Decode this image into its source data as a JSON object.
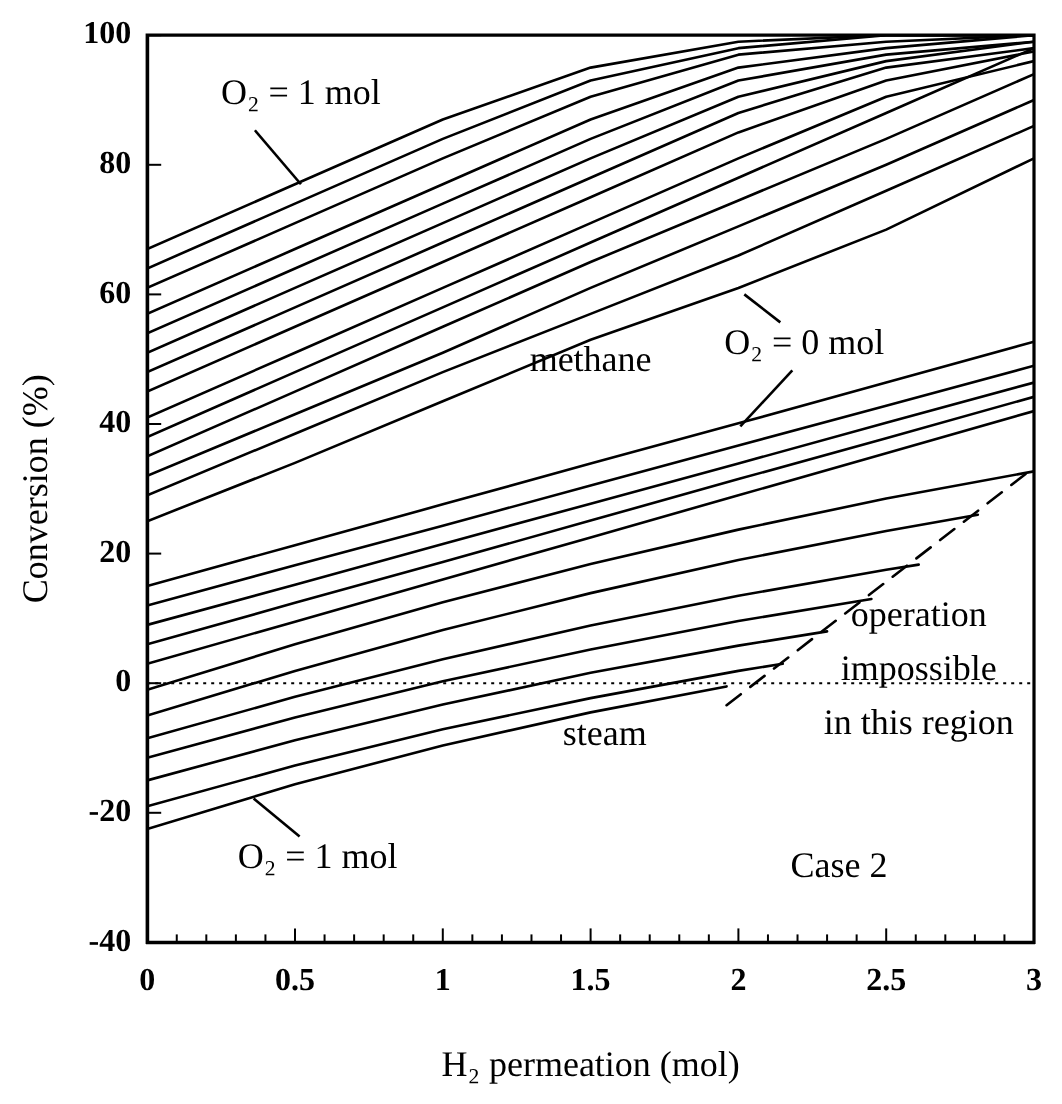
{
  "chart_data": {
    "type": "line",
    "xlabel": "H₂ permeation (mol)",
    "ylabel": "Conversion (%)",
    "x": [
      0,
      0.5,
      1,
      1.5,
      2,
      2.5,
      3
    ],
    "xlim": [
      0,
      3
    ],
    "ylim": [
      -40,
      100
    ],
    "xticks": [
      0,
      {
        "value": 0.1,
        "label": null
      },
      {
        "value": 0.2,
        "label": null
      },
      {
        "value": 0.3,
        "label": null
      },
      {
        "value": 0.4,
        "label": null
      },
      0.5,
      {
        "value": 0.6,
        "label": null
      },
      {
        "value": 0.7,
        "label": null
      },
      {
        "value": 0.8,
        "label": null
      },
      {
        "value": 0.9,
        "label": null
      },
      1,
      {
        "value": 1.1,
        "label": null
      },
      {
        "value": 1.2,
        "label": null
      },
      {
        "value": 1.3,
        "label": null
      },
      {
        "value": 1.4,
        "label": null
      },
      1.5,
      {
        "value": 1.6,
        "label": null
      },
      {
        "value": 1.7,
        "label": null
      },
      {
        "value": 1.8,
        "label": null
      },
      {
        "value": 1.9,
        "label": null
      },
      2,
      {
        "value": 2.1,
        "label": null
      },
      {
        "value": 2.2,
        "label": null
      },
      {
        "value": 2.3,
        "label": null
      },
      {
        "value": 2.4,
        "label": null
      },
      2.5,
      {
        "value": 2.6,
        "label": null
      },
      {
        "value": 2.7,
        "label": null
      },
      {
        "value": 2.8,
        "label": null
      },
      {
        "value": 2.9,
        "label": null
      },
      3
    ],
    "yticks": [
      -40,
      -20,
      0,
      20,
      40,
      60,
      80,
      100
    ],
    "series": [
      {
        "color": "#000000",
        "values": [
          67,
          77,
          87,
          95,
          99,
          100,
          100
        ]
      },
      {
        "color": "#000000",
        "values": [
          64,
          74,
          84,
          93,
          98,
          100,
          100
        ]
      },
      {
        "color": "#000000",
        "values": [
          61,
          71,
          81,
          90.5,
          97,
          99,
          100
        ]
      },
      {
        "color": "#000000",
        "values": [
          57,
          67,
          77,
          87,
          95,
          98,
          100
        ]
      },
      {
        "color": "#000000",
        "values": [
          54,
          64,
          74,
          84,
          93,
          97,
          99
        ]
      },
      {
        "color": "#000000",
        "values": [
          51,
          61,
          71,
          81,
          90.5,
          96,
          99
        ]
      },
      {
        "color": "#000000",
        "values": [
          48,
          58,
          68,
          78,
          88,
          95,
          98
        ]
      },
      {
        "color": "#000000",
        "values": [
          45,
          55,
          65,
          75,
          85,
          93,
          97.5
        ]
      },
      {
        "color": "#000000",
        "values": [
          41,
          51,
          61,
          71,
          81,
          90.5,
          96
        ]
      },
      {
        "color": "#000000",
        "values": [
          38,
          48,
          58,
          68,
          78,
          88,
          98
        ]
      },
      {
        "color": "#000000",
        "values": [
          35,
          45,
          55,
          65,
          74.5,
          84,
          94
        ]
      },
      {
        "color": "#000000",
        "values": [
          32,
          41.5,
          51,
          61,
          70.5,
          80,
          90
        ]
      },
      {
        "color": "#000000",
        "values": [
          29,
          38.5,
          48,
          57,
          66,
          76,
          86
        ]
      },
      {
        "color": "#000000",
        "values": [
          25,
          34,
          43.5,
          53,
          61,
          70,
          81
        ]
      },
      {
        "color": "#000000",
        "values": [
          15,
          21.3,
          27.6,
          33.9,
          40.1,
          46.4,
          52.7
        ]
      },
      {
        "color": "#000000",
        "values": [
          12,
          18.2,
          24.3,
          30.5,
          36.7,
          42.8,
          49
        ]
      },
      {
        "color": "#000000",
        "values": [
          9,
          15.2,
          21.5,
          27.7,
          33.9,
          40.2,
          46.4
        ]
      },
      {
        "color": "#000000",
        "values": [
          6,
          12.4,
          18.7,
          25.1,
          31.5,
          37.8,
          44.2
        ]
      },
      {
        "color": "#000000",
        "values": [
          3,
          9.5,
          16,
          22.5,
          29,
          35.5,
          42
        ]
      },
      {
        "color": "#000000",
        "values": [
          -1,
          6,
          12.5,
          18.4,
          23.7,
          28.5,
          32.7
        ]
      },
      {
        "color": "#000000",
        "x": [
          0,
          0.5,
          1,
          1.5,
          2,
          2.5,
          2.81
        ],
        "values": [
          -5,
          1.9,
          8.2,
          13.9,
          19,
          23.5,
          26
        ]
      },
      {
        "color": "#000000",
        "x": [
          0,
          0.5,
          1,
          1.5,
          2,
          2.5,
          2.61
        ],
        "values": [
          -8.5,
          -2.1,
          3.7,
          8.9,
          13.5,
          17.5,
          18.3
        ]
      },
      {
        "color": "#000000",
        "x": [
          0,
          0.5,
          1,
          1.5,
          2,
          2.45
        ],
        "values": [
          -11.5,
          -5.3,
          0.3,
          5.2,
          9.6,
          13
        ]
      },
      {
        "color": "#000000",
        "x": [
          0,
          0.5,
          1,
          1.5,
          2,
          2.3
        ],
        "values": [
          -15,
          -8.8,
          -3.3,
          1.6,
          5.8,
          8
        ]
      },
      {
        "color": "#000000",
        "x": [
          0,
          0.5,
          1,
          1.5,
          2,
          2.15
        ],
        "values": [
          -19,
          -12.7,
          -7.1,
          -2.3,
          1.9,
          3
        ]
      },
      {
        "color": "#000000",
        "x": [
          0,
          0.5,
          1,
          1.5,
          1.96
        ],
        "values": [
          -22.5,
          -15.6,
          -9.6,
          -4.5,
          -0.5
        ]
      },
      {
        "color": "#000000",
        "x": [
          1.96,
          3
        ],
        "values": [
          -3.4,
          33.3
        ],
        "line_style": "dashed"
      }
    ],
    "ref_lines": [
      {
        "axis": "y",
        "value": 0,
        "line_style": "dotted",
        "color": "#000000"
      }
    ],
    "annotations": [
      {
        "text": "O₂ = 1 mol",
        "x": 0.52,
        "y": 77
      },
      {
        "text": "O₂ = 0 mol",
        "x": 2.02,
        "y": 60
      },
      {
        "text": "O₂ = 1 mol",
        "x": 0.36,
        "y": -17.8
      },
      "methane",
      "steam",
      "operation\nimpossible\nin this region",
      "Case 2"
    ],
    "grid": false
  }
}
